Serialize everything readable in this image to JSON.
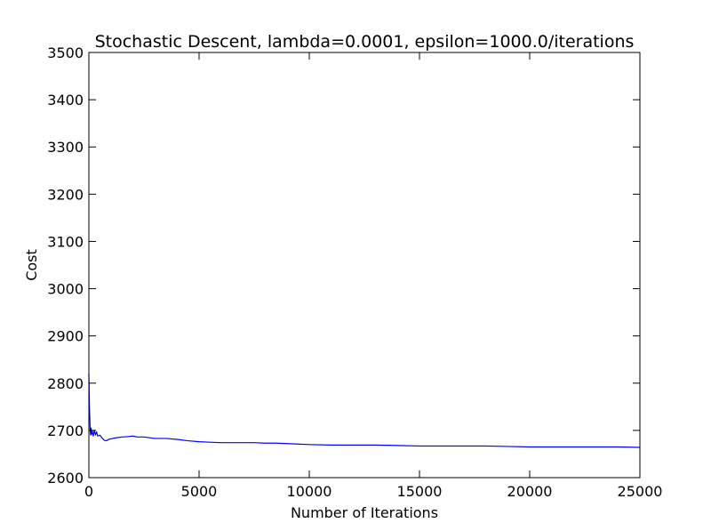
{
  "chart_data": {
    "type": "line",
    "title": "Stochastic Descent, lambda=0.0001, epsilon=1000.0/iterations",
    "xlabel": "Number of Iterations",
    "ylabel": "Cost",
    "xlim": [
      0,
      25000
    ],
    "ylim": [
      2600,
      3500
    ],
    "xticks": [
      0,
      5000,
      10000,
      15000,
      20000,
      25000
    ],
    "xtick_labels": [
      "0",
      "5000",
      "10000",
      "15000",
      "20000",
      "25000"
    ],
    "yticks": [
      2600,
      2700,
      2800,
      2900,
      3000,
      3100,
      3200,
      3300,
      3400,
      3500
    ],
    "ytick_labels": [
      "2600",
      "2700",
      "2800",
      "2900",
      "3000",
      "3100",
      "3200",
      "3300",
      "3400",
      "3500"
    ],
    "grid": false,
    "line_color": "#0000ff",
    "series": [
      {
        "x": [
          0,
          20,
          40,
          60,
          80,
          100,
          130,
          160,
          200,
          250,
          300,
          350,
          400,
          500,
          600,
          700,
          800,
          900,
          1000,
          1200,
          1500,
          1800,
          2000,
          2200,
          2500,
          3000,
          3500,
          4000,
          4500,
          5000,
          5500,
          6000,
          7000,
          7500,
          8000,
          8500,
          9000,
          10000,
          11000,
          12000,
          13000,
          14000,
          15000,
          16000,
          17000,
          18000,
          19000,
          20000,
          21000,
          22000,
          23000,
          24000,
          25000
        ],
        "y": [
          2820,
          2760,
          2730,
          2700,
          2690,
          2705,
          2692,
          2698,
          2688,
          2700,
          2690,
          2697,
          2688,
          2690,
          2684,
          2679,
          2678,
          2681,
          2682,
          2684,
          2686,
          2687,
          2688,
          2686,
          2686,
          2683,
          2683,
          2681,
          2678,
          2676,
          2675,
          2674,
          2674,
          2674,
          2673,
          2673,
          2672,
          2670,
          2669,
          2669,
          2669,
          2668,
          2667,
          2667,
          2667,
          2667,
          2666,
          2665,
          2665,
          2665,
          2665,
          2665,
          2664
        ]
      }
    ]
  }
}
